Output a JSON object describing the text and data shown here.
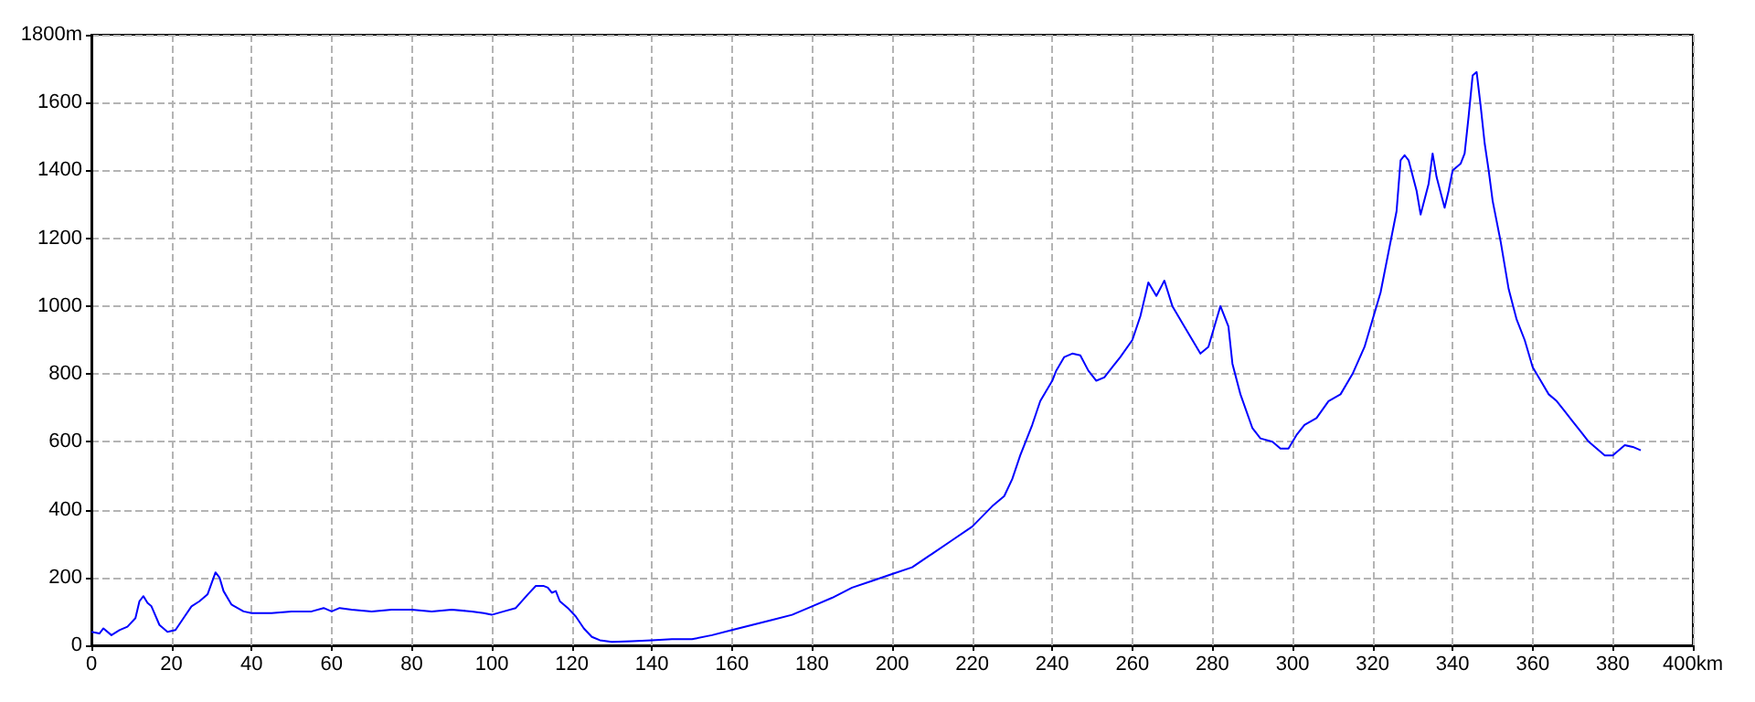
{
  "chart_data": {
    "type": "line",
    "x": [
      0,
      2,
      3,
      5,
      7,
      9,
      11,
      12,
      13,
      14,
      15,
      17,
      19,
      21,
      23,
      25,
      27,
      29,
      31,
      32,
      33,
      35,
      38,
      40,
      45,
      50,
      55,
      58,
      60,
      62,
      65,
      70,
      75,
      80,
      85,
      90,
      95,
      98,
      100,
      103,
      106,
      109,
      111,
      113,
      114,
      115,
      116,
      117,
      119,
      121,
      123,
      125,
      127,
      130,
      135,
      140,
      145,
      150,
      155,
      160,
      165,
      170,
      175,
      180,
      185,
      190,
      195,
      200,
      205,
      210,
      215,
      220,
      225,
      228,
      230,
      232,
      235,
      237,
      240,
      241,
      243,
      245,
      247,
      249,
      251,
      253,
      255,
      257,
      260,
      262,
      264,
      266,
      268,
      270,
      273,
      275,
      277,
      279,
      281,
      282,
      284,
      285,
      287,
      290,
      292,
      295,
      297,
      299,
      301,
      303,
      306,
      309,
      312,
      315,
      318,
      320,
      322,
      324,
      326,
      327,
      328,
      329,
      331,
      332,
      334,
      335,
      336,
      338,
      339,
      340,
      342,
      343,
      344,
      345,
      346,
      347,
      348,
      349,
      350,
      352,
      354,
      356,
      358,
      360,
      362,
      364,
      366,
      368,
      370,
      372,
      374,
      376,
      378,
      380,
      382,
      383,
      385,
      387
    ],
    "series": [
      {
        "color": "#0000ff",
        "values": [
          40,
          35,
          50,
          30,
          45,
          55,
          80,
          130,
          145,
          125,
          115,
          60,
          40,
          45,
          80,
          115,
          130,
          150,
          215,
          200,
          160,
          120,
          100,
          95,
          95,
          100,
          100,
          110,
          100,
          110,
          105,
          100,
          105,
          105,
          100,
          105,
          100,
          95,
          90,
          100,
          110,
          150,
          175,
          175,
          170,
          155,
          160,
          130,
          110,
          85,
          50,
          25,
          15,
          10,
          12,
          15,
          18,
          18,
          30,
          45,
          60,
          75,
          90,
          115,
          140,
          170,
          190,
          210,
          230,
          270,
          310,
          350,
          410,
          440,
          490,
          560,
          650,
          720,
          780,
          810,
          850,
          860,
          855,
          810,
          780,
          790,
          820,
          850,
          900,
          970,
          1070,
          1030,
          1075,
          1000,
          940,
          900,
          860,
          880,
          960,
          1000,
          940,
          830,
          740,
          640,
          610,
          600,
          580,
          580,
          620,
          650,
          670,
          720,
          740,
          800,
          880,
          960,
          1040,
          1160,
          1280,
          1430,
          1445,
          1430,
          1340,
          1270,
          1360,
          1450,
          1380,
          1290,
          1340,
          1400,
          1420,
          1450,
          1560,
          1680,
          1690,
          1590,
          1480,
          1400,
          1310,
          1190,
          1050,
          960,
          900,
          820,
          780,
          740,
          720,
          690,
          660,
          630,
          600,
          580,
          560,
          560,
          580,
          590,
          585,
          575
        ]
      }
    ],
    "xlim": [
      0,
      400
    ],
    "xticks": [
      0,
      20,
      40,
      60,
      80,
      100,
      120,
      140,
      160,
      180,
      200,
      220,
      240,
      260,
      280,
      300,
      320,
      340,
      360,
      380,
      {
        "value": 400,
        "label": "400km"
      }
    ],
    "ylim": [
      0,
      1800
    ],
    "yticks": [
      0,
      200,
      400,
      600,
      800,
      1000,
      1200,
      1400,
      1600,
      {
        "value": 1800,
        "label": "1800m"
      }
    ],
    "grid": true,
    "marker": "none",
    "line_style": "solid"
  }
}
